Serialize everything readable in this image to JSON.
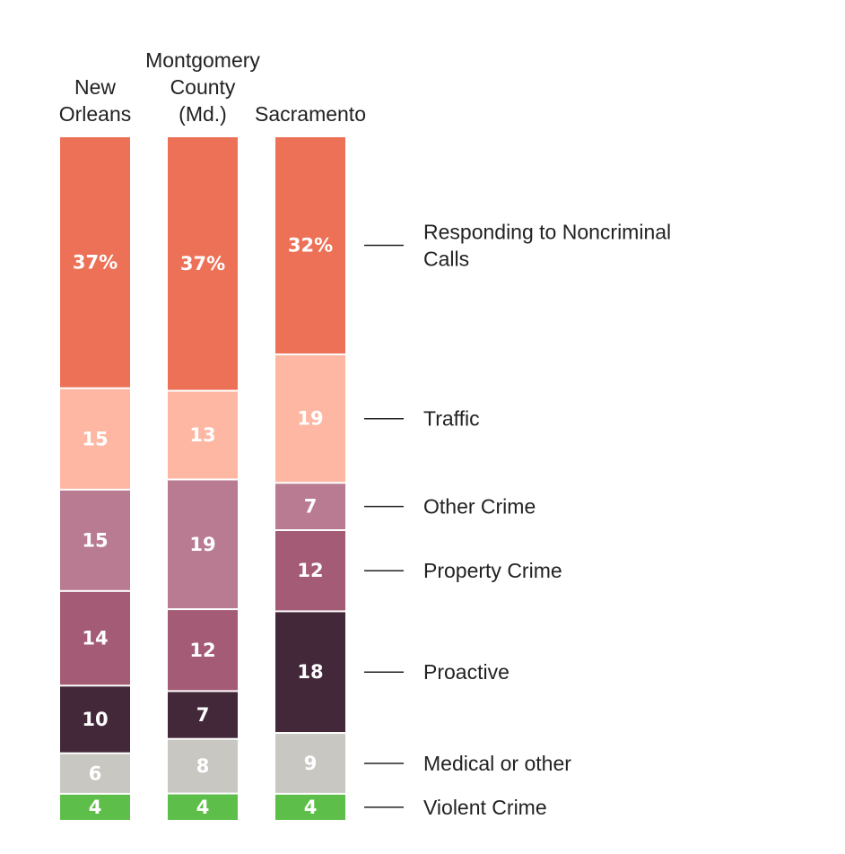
{
  "chart_data": {
    "type": "bar",
    "stacked": true,
    "orientation": "vertical",
    "normalized": true,
    "categories": [
      "New Orleans",
      "Montgomery County (Md.)",
      "Sacramento"
    ],
    "category_label_lines": [
      [
        "New",
        "Orleans"
      ],
      [
        "Montgomery",
        "County",
        "(Md.)"
      ],
      [
        "Sacramento"
      ]
    ],
    "series": [
      {
        "name": "Violent Crime",
        "values": [
          4,
          4,
          4
        ],
        "labels": [
          "4",
          "4",
          "4"
        ],
        "color": "#5dbf4a"
      },
      {
        "name": "Medical or other",
        "values": [
          6,
          8,
          9
        ],
        "labels": [
          "6",
          "8",
          "9"
        ],
        "color": "#c8c7c2"
      },
      {
        "name": "Proactive",
        "values": [
          10,
          7,
          18
        ],
        "labels": [
          "10",
          "7",
          "18"
        ],
        "color": "#43283a"
      },
      {
        "name": "Property Crime",
        "values": [
          14,
          12,
          12
        ],
        "labels": [
          "14",
          "12",
          "12"
        ],
        "color": "#a45b75"
      },
      {
        "name": "Other Crime",
        "values": [
          15,
          19,
          7
        ],
        "labels": [
          "15",
          "19",
          "7"
        ],
        "color": "#b87b92"
      },
      {
        "name": "Traffic",
        "values": [
          15,
          13,
          19
        ],
        "labels": [
          "15",
          "13",
          "19"
        ],
        "color": "#fdb7a2"
      },
      {
        "name": "Responding to Noncriminal Calls",
        "values": [
          37,
          37,
          32
        ],
        "labels": [
          "37%",
          "37%",
          "32%"
        ],
        "color": "#ec7157"
      }
    ],
    "legend": {
      "placement": "right",
      "entries": [
        {
          "series": "Responding to Noncriminal Calls",
          "lines": [
            "Responding to Noncriminal",
            "Calls"
          ]
        },
        {
          "series": "Traffic",
          "lines": [
            "Traffic"
          ]
        },
        {
          "series": "Other Crime",
          "lines": [
            "Other Crime"
          ]
        },
        {
          "series": "Property Crime",
          "lines": [
            "Property Crime"
          ]
        },
        {
          "series": "Proactive",
          "lines": [
            "Proactive"
          ]
        },
        {
          "series": "Medical or other",
          "lines": [
            "Medical or other"
          ]
        },
        {
          "series": "Violent Crime",
          "lines": [
            "Violent Crime"
          ]
        }
      ]
    },
    "title": "",
    "xlabel": "",
    "ylabel": "",
    "grid": false
  }
}
